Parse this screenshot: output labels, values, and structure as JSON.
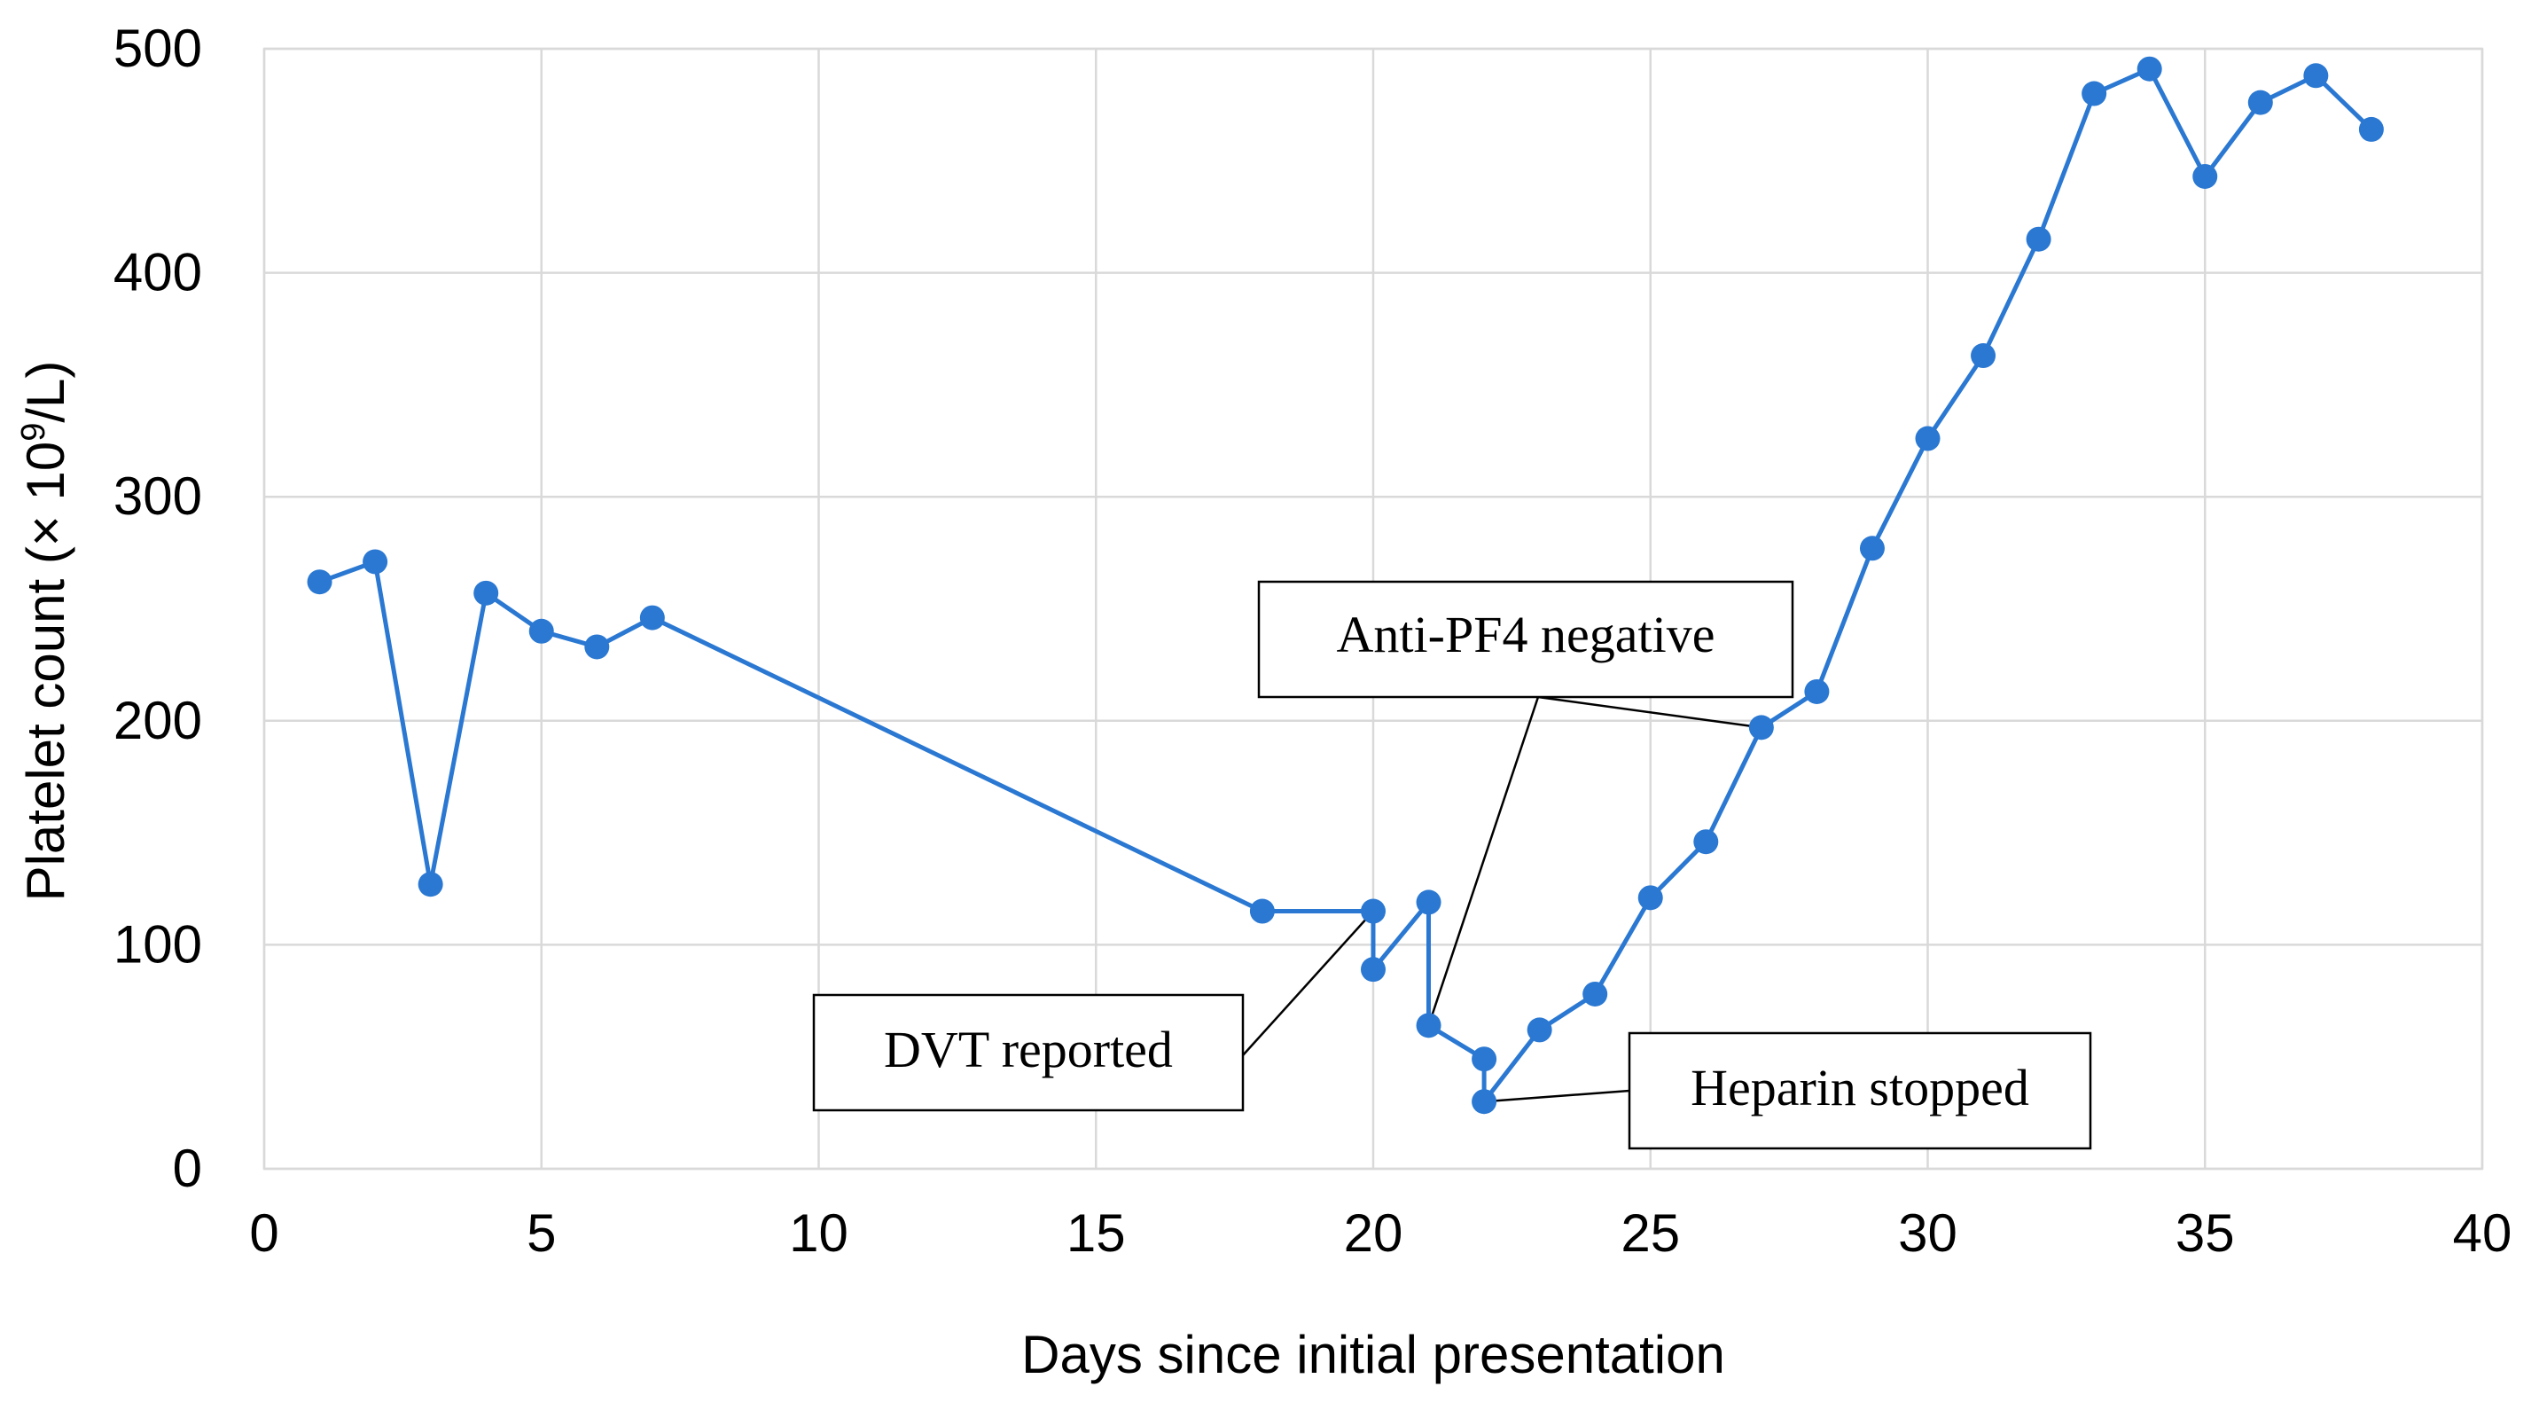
{
  "chart_data": {
    "type": "line",
    "title": "",
    "xlabel": "Days since initial presentation",
    "ylabel_prefix": "Platelet count (× 10",
    "ylabel_superscript": "9",
    "ylabel_suffix": "/L)",
    "xlim": [
      0,
      40
    ],
    "ylim": [
      0,
      500
    ],
    "x_ticks": [
      0,
      5,
      10,
      15,
      20,
      25,
      30,
      35,
      40
    ],
    "y_ticks": [
      0,
      100,
      200,
      300,
      400,
      500
    ],
    "grid": true,
    "legend": "none",
    "series": [
      {
        "name": "Platelet count",
        "color": "#2a78d2",
        "points": [
          [
            1,
            262
          ],
          [
            2,
            271
          ],
          [
            3,
            127
          ],
          [
            4,
            257
          ],
          [
            5,
            240
          ],
          [
            6,
            233
          ],
          [
            7,
            246
          ],
          [
            18,
            115
          ],
          [
            20,
            115
          ],
          [
            20,
            89
          ],
          [
            21,
            119
          ],
          [
            21,
            64
          ],
          [
            22,
            49
          ],
          [
            22,
            30
          ],
          [
            23,
            62
          ],
          [
            24,
            78
          ],
          [
            25,
            121
          ],
          [
            26,
            146
          ],
          [
            27,
            197
          ],
          [
            28,
            213
          ],
          [
            29,
            277
          ],
          [
            30,
            326
          ],
          [
            31,
            363
          ],
          [
            32,
            415
          ],
          [
            33,
            480
          ],
          [
            34,
            491
          ],
          [
            35,
            443
          ],
          [
            36,
            476
          ],
          [
            37,
            488
          ],
          [
            38,
            464
          ]
        ]
      }
    ],
    "annotations": [
      {
        "text": "Anti-PF4 negative",
        "targets": [
          [
            21,
            64
          ],
          [
            27,
            197
          ]
        ]
      },
      {
        "text": "DVT reported",
        "targets": [
          [
            20,
            115
          ]
        ]
      },
      {
        "text": "Heparin stopped",
        "targets": [
          [
            22,
            30
          ]
        ]
      }
    ]
  }
}
